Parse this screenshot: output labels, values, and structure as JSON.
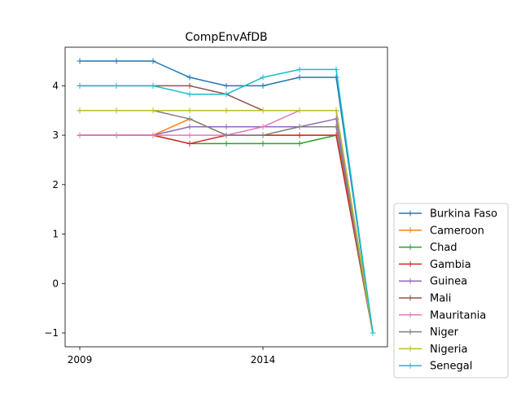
{
  "chart_data": {
    "type": "line",
    "title": "CompEnvAfDB",
    "xlabel": "",
    "ylabel": "",
    "x": [
      2009,
      2010,
      2011,
      2012,
      2013,
      2014,
      2015,
      2016,
      2017
    ],
    "xticks": [
      {
        "value": 2009,
        "label": "2009"
      },
      {
        "value": 2014,
        "label": "2014"
      }
    ],
    "yticks": [
      {
        "value": -1,
        "label": "−1"
      },
      {
        "value": 0,
        "label": "0"
      },
      {
        "value": 1,
        "label": "1"
      },
      {
        "value": 2,
        "label": "2"
      },
      {
        "value": 3,
        "label": "3"
      },
      {
        "value": 4,
        "label": "4"
      }
    ],
    "xlim": [
      2008.6,
      2017.4
    ],
    "ylim": [
      -1.28,
      4.78
    ],
    "grid": false,
    "legend": "outside-right-bottom",
    "series": [
      {
        "name": "Burkina Faso",
        "color": "#1f77b4",
        "values": [
          4.5,
          4.5,
          4.5,
          4.17,
          4.0,
          4.0,
          4.17,
          4.17,
          -1.0
        ]
      },
      {
        "name": "Cameroon",
        "color": "#ff7f0e",
        "values": [
          3.0,
          3.0,
          3.0,
          3.33,
          3.0,
          3.0,
          3.0,
          3.0,
          -1.0
        ]
      },
      {
        "name": "Chad",
        "color": "#2ca02c",
        "values": [
          3.0,
          3.0,
          3.0,
          2.83,
          2.83,
          2.83,
          2.83,
          3.0,
          -1.0
        ]
      },
      {
        "name": "Gambia",
        "color": "#d62728",
        "values": [
          3.0,
          3.0,
          3.0,
          2.83,
          3.0,
          3.0,
          3.0,
          3.0,
          -1.0
        ]
      },
      {
        "name": "Guinea",
        "color": "#9467bd",
        "values": [
          3.0,
          3.0,
          3.0,
          3.17,
          3.17,
          3.17,
          3.17,
          3.33,
          -1.0
        ]
      },
      {
        "name": "Mali",
        "color": "#8c564b",
        "values": [
          4.0,
          4.0,
          4.0,
          4.0,
          3.83,
          3.5,
          3.5,
          3.5,
          -1.0
        ]
      },
      {
        "name": "Mauritania",
        "color": "#e377c2",
        "values": [
          3.0,
          3.0,
          3.0,
          3.0,
          3.0,
          3.17,
          3.5,
          3.5,
          -1.0
        ]
      },
      {
        "name": "Niger",
        "color": "#7f7f7f",
        "values": [
          3.5,
          3.5,
          3.5,
          3.33,
          3.0,
          3.0,
          3.17,
          3.17,
          -1.0
        ]
      },
      {
        "name": "Nigeria",
        "color": "#bcbd22",
        "values": [
          3.5,
          3.5,
          3.5,
          3.5,
          3.5,
          3.5,
          3.5,
          3.5,
          -1.0
        ]
      },
      {
        "name": "Senegal",
        "color": "#17becf",
        "values": [
          4.0,
          4.0,
          4.0,
          3.83,
          3.83,
          4.17,
          4.33,
          4.33,
          -1.0
        ]
      }
    ]
  }
}
